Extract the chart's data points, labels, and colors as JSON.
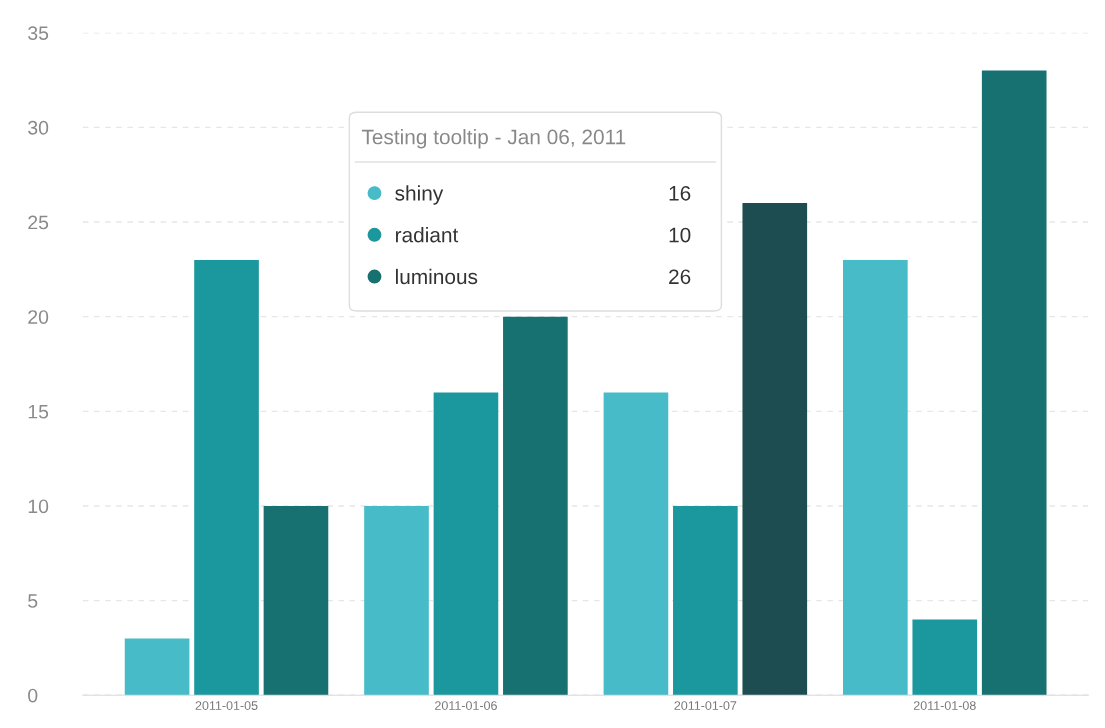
{
  "chart_data": {
    "type": "bar",
    "categories": [
      "2011-01-05",
      "2011-01-06",
      "2011-01-07",
      "2011-01-08"
    ],
    "series": [
      {
        "name": "shiny",
        "color": "#47bbc8",
        "values": [
          3,
          10,
          16,
          23
        ]
      },
      {
        "name": "radiant",
        "color": "#1b979e",
        "values": [
          23,
          16,
          10,
          4
        ]
      },
      {
        "name": "luminous",
        "color": "#177170",
        "colors": [
          "#177170",
          "#177170",
          "#1d4d50",
          "#177170"
        ],
        "values": [
          10,
          20,
          26,
          33
        ]
      }
    ],
    "ylim": [
      0,
      35
    ],
    "yticks": [
      0,
      5,
      10,
      15,
      20,
      25,
      30,
      35
    ],
    "grid": "y",
    "legend": "top",
    "legend_title": "Testing tooltip - Jan 06, 2011",
    "annotations": [
      "16",
      "10",
      "26"
    ]
  }
}
